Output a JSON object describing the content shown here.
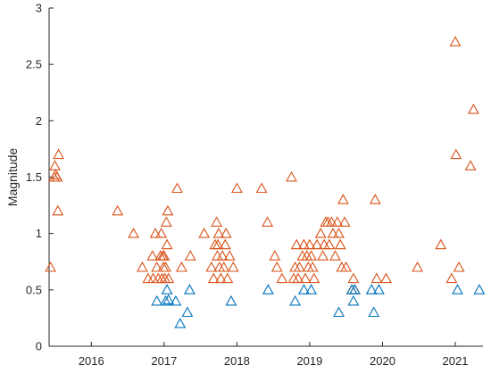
{
  "chart_data": {
    "type": "scatter",
    "title": "",
    "xlabel": "",
    "ylabel": "Magnitude",
    "xlim": [
      2015.42,
      2021.38
    ],
    "ylim": [
      0,
      3
    ],
    "x_ticks": [
      2016,
      2017,
      2018,
      2019,
      2020,
      2021
    ],
    "x_tick_labels": [
      "2016",
      "2017",
      "2018",
      "2019",
      "2020",
      "2021"
    ],
    "y_ticks": [
      0,
      0.5,
      1,
      1.5,
      2,
      2.5,
      3
    ],
    "y_tick_labels": [
      "0",
      "0.5",
      "1",
      "1.5",
      "2",
      "2.5",
      "3"
    ],
    "grid": false,
    "legend": "none",
    "marker": "triangle-open",
    "series": [
      {
        "color": "#D95319",
        "points": [
          [
            2015.44,
            0.7
          ],
          [
            2015.49,
            1.5
          ],
          [
            2015.5,
            1.6
          ],
          [
            2015.51,
            1.52
          ],
          [
            2015.53,
            1.5
          ],
          [
            2015.54,
            1.2
          ],
          [
            2015.55,
            1.7
          ],
          [
            2016.36,
            1.2
          ],
          [
            2016.58,
            1.0
          ],
          [
            2016.7,
            0.7
          ],
          [
            2016.78,
            0.6
          ],
          [
            2016.84,
            0.8
          ],
          [
            2016.85,
            0.6
          ],
          [
            2016.88,
            1.0
          ],
          [
            2016.9,
            0.7
          ],
          [
            2016.92,
            0.6
          ],
          [
            2016.95,
            0.8
          ],
          [
            2016.96,
            1.0
          ],
          [
            2016.97,
            0.6
          ],
          [
            2016.98,
            0.8
          ],
          [
            2016.99,
            0.7
          ],
          [
            2017.0,
            0.8
          ],
          [
            2017.01,
            0.6
          ],
          [
            2017.02,
            0.7
          ],
          [
            2017.03,
            1.1
          ],
          [
            2017.04,
            0.9
          ],
          [
            2017.05,
            1.2
          ],
          [
            2017.06,
            0.6
          ],
          [
            2017.18,
            1.4
          ],
          [
            2017.24,
            0.7
          ],
          [
            2017.36,
            0.8
          ],
          [
            2017.55,
            1.0
          ],
          [
            2017.65,
            0.7
          ],
          [
            2017.68,
            0.6
          ],
          [
            2017.7,
            0.9
          ],
          [
            2017.72,
            1.1
          ],
          [
            2017.73,
            0.8
          ],
          [
            2017.74,
            0.9
          ],
          [
            2017.75,
            1.0
          ],
          [
            2017.76,
            0.7
          ],
          [
            2017.78,
            0.6
          ],
          [
            2017.8,
            0.8
          ],
          [
            2017.82,
            0.7
          ],
          [
            2017.84,
            0.9
          ],
          [
            2017.85,
            1.0
          ],
          [
            2017.87,
            0.6
          ],
          [
            2017.9,
            0.8
          ],
          [
            2017.95,
            0.7
          ],
          [
            2018.0,
            1.4
          ],
          [
            2018.34,
            1.4
          ],
          [
            2018.42,
            1.1
          ],
          [
            2018.52,
            0.8
          ],
          [
            2018.55,
            0.7
          ],
          [
            2018.62,
            0.6
          ],
          [
            2018.75,
            1.5
          ],
          [
            2018.78,
            0.6
          ],
          [
            2018.8,
            0.7
          ],
          [
            2018.82,
            0.9
          ],
          [
            2018.84,
            0.6
          ],
          [
            2018.86,
            0.7
          ],
          [
            2018.9,
            0.8
          ],
          [
            2018.92,
            0.9
          ],
          [
            2018.94,
            0.6
          ],
          [
            2018.96,
            0.8
          ],
          [
            2018.98,
            0.7
          ],
          [
            2019.0,
            0.9
          ],
          [
            2019.02,
            0.8
          ],
          [
            2019.04,
            0.7
          ],
          [
            2019.06,
            0.6
          ],
          [
            2019.1,
            0.9
          ],
          [
            2019.15,
            1.0
          ],
          [
            2019.18,
            0.8
          ],
          [
            2019.2,
            0.9
          ],
          [
            2019.22,
            1.1
          ],
          [
            2019.25,
            1.1
          ],
          [
            2019.27,
            0.9
          ],
          [
            2019.3,
            1.1
          ],
          [
            2019.32,
            1.0
          ],
          [
            2019.35,
            0.8
          ],
          [
            2019.38,
            1.1
          ],
          [
            2019.4,
            1.0
          ],
          [
            2019.42,
            0.9
          ],
          [
            2019.44,
            0.7
          ],
          [
            2019.46,
            1.3
          ],
          [
            2019.48,
            1.1
          ],
          [
            2019.5,
            0.7
          ],
          [
            2019.58,
            0.5
          ],
          [
            2019.6,
            0.6
          ],
          [
            2019.62,
            0.5
          ],
          [
            2019.9,
            1.3
          ],
          [
            2019.92,
            0.6
          ],
          [
            2020.05,
            0.6
          ],
          [
            2020.48,
            0.7
          ],
          [
            2020.8,
            0.9
          ],
          [
            2020.95,
            0.6
          ],
          [
            2021.0,
            2.7
          ],
          [
            2021.01,
            1.7
          ],
          [
            2021.05,
            0.7
          ],
          [
            2021.21,
            1.6
          ],
          [
            2021.25,
            2.1
          ]
        ]
      },
      {
        "color": "#0072BD",
        "points": [
          [
            2016.9,
            0.4
          ],
          [
            2017.02,
            0.4
          ],
          [
            2017.04,
            0.5
          ],
          [
            2017.06,
            0.41
          ],
          [
            2017.16,
            0.4
          ],
          [
            2017.22,
            0.2
          ],
          [
            2017.32,
            0.3
          ],
          [
            2017.35,
            0.5
          ],
          [
            2017.92,
            0.4
          ],
          [
            2018.43,
            0.5
          ],
          [
            2018.8,
            0.4
          ],
          [
            2018.92,
            0.5
          ],
          [
            2019.02,
            0.5
          ],
          [
            2019.4,
            0.3
          ],
          [
            2019.58,
            0.5
          ],
          [
            2019.6,
            0.4
          ],
          [
            2019.62,
            0.5
          ],
          [
            2019.85,
            0.5
          ],
          [
            2019.88,
            0.3
          ],
          [
            2019.95,
            0.5
          ],
          [
            2021.03,
            0.5
          ],
          [
            2021.33,
            0.5
          ]
        ]
      }
    ]
  }
}
